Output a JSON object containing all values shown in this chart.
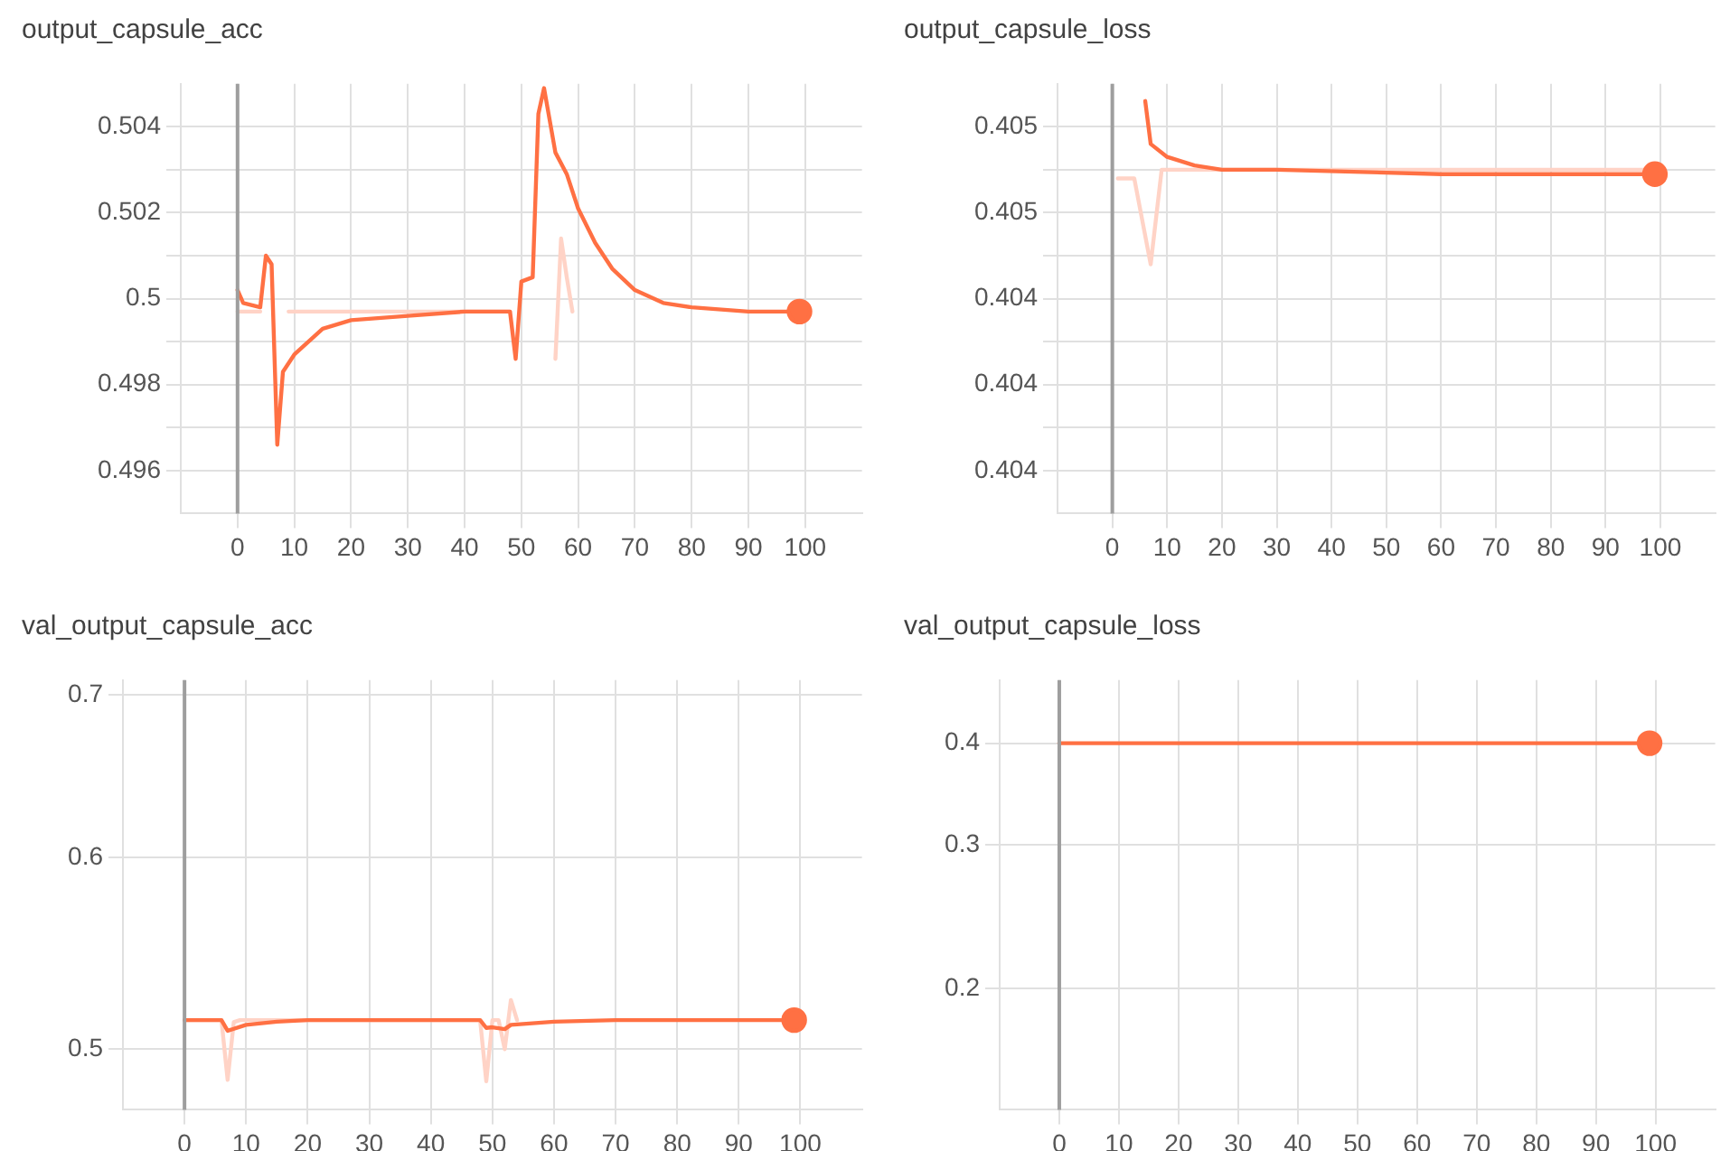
{
  "chart_data": [
    {
      "type": "line",
      "title": "output_capsule_acc",
      "xlim": [
        -10,
        110
      ],
      "xticks": [
        0,
        10,
        20,
        30,
        40,
        50,
        60,
        70,
        80,
        90,
        100
      ],
      "ylim": [
        0.495,
        0.505
      ],
      "yticks": [
        0.496,
        {
          "value": 0.497,
          "label": null
        },
        0.498,
        {
          "value": 0.499,
          "label": null
        },
        0.5,
        {
          "value": 0.501,
          "label": null
        },
        0.502,
        {
          "value": 0.503,
          "label": null
        },
        0.504
      ],
      "grid": true,
      "legend": false,
      "ref_lines": [
        {
          "axis": "x",
          "value": 0,
          "color": "#9e9e9e"
        }
      ],
      "series": [
        {
          "type": "scatter",
          "marker": "circle",
          "color": "#ff7043",
          "x": [
            99
          ],
          "values": [
            0.4997
          ]
        },
        {
          "type": "line",
          "marker": "none",
          "color": "#ff7043",
          "x": [
            0,
            1,
            4,
            5,
            6,
            7,
            8,
            10,
            15,
            20,
            30,
            40,
            48,
            49,
            50,
            52,
            53,
            54,
            56,
            58,
            60,
            63,
            66,
            70,
            75,
            80,
            90,
            99
          ],
          "values": [
            0.5002,
            0.4999,
            0.4998,
            0.501,
            0.5008,
            0.4966,
            0.4983,
            0.4987,
            0.4993,
            0.4995,
            0.4996,
            0.4997,
            0.4997,
            0.4986,
            0.5004,
            0.5005,
            0.5043,
            0.5049,
            0.5034,
            0.5029,
            0.5021,
            0.5013,
            0.5007,
            0.5002,
            0.4999,
            0.4998,
            0.4997,
            0.4997
          ]
        },
        {
          "type": "line",
          "marker": "none",
          "color": "#ffd3c6",
          "x": [
            0,
            4,
            5,
            6,
            7,
            8,
            9,
            48,
            49,
            50,
            51,
            54,
            56,
            57,
            58,
            59
          ],
          "values": [
            0.4997,
            0.4997,
            null,
            null,
            null,
            null,
            0.4997,
            0.4997,
            null,
            null,
            null,
            null,
            0.4986,
            0.5014,
            0.5005,
            0.4997
          ]
        }
      ]
    },
    {
      "type": "line",
      "title": "output_capsule_loss",
      "xlim": [
        -10,
        110
      ],
      "xticks": [
        0,
        10,
        20,
        30,
        40,
        50,
        60,
        70,
        80,
        90,
        100
      ],
      "ylim": [
        0.4039,
        0.4049
      ],
      "yticks": [
        {
          "value": 0.404,
          "label": "0.404"
        },
        {
          "value": 0.4041,
          "label": null
        },
        {
          "value": 0.4042,
          "label": "0.404"
        },
        {
          "value": 0.4043,
          "label": null
        },
        {
          "value": 0.4044,
          "label": "0.404"
        },
        {
          "value": 0.4045,
          "label": null
        },
        {
          "value": 0.4046,
          "label": "0.405"
        },
        {
          "value": 0.4047,
          "label": null
        },
        {
          "value": 0.4048,
          "label": "0.405"
        }
      ],
      "grid": true,
      "legend": false,
      "ref_lines": [
        {
          "axis": "x",
          "value": 0,
          "color": "#9e9e9e"
        }
      ],
      "series": [
        {
          "type": "scatter",
          "marker": "circle",
          "color": "#ff7043",
          "x": [
            99
          ],
          "values": [
            0.40469
          ]
        },
        {
          "type": "line",
          "marker": "none",
          "color": "#ff7043",
          "x": [
            6,
            7,
            10,
            15,
            20,
            30,
            60,
            99
          ],
          "values": [
            0.40486,
            0.40476,
            0.40473,
            0.40471,
            0.4047,
            0.4047,
            0.40469,
            0.40469
          ]
        },
        {
          "type": "line",
          "marker": "none",
          "color": "#ffd3c6",
          "x": [
            1,
            4,
            7,
            9,
            99
          ],
          "values": [
            0.40468,
            0.40468,
            0.40448,
            0.4047,
            0.4047
          ]
        }
      ]
    },
    {
      "type": "line",
      "title": "val_output_capsule_acc",
      "log": "y",
      "xlim": [
        -10,
        110
      ],
      "xticks": [
        0,
        10,
        20,
        30,
        40,
        50,
        60,
        70,
        80,
        90,
        100
      ],
      "ylim": [
        0.472,
        0.71
      ],
      "yticks": [
        0.5,
        0.6,
        0.7
      ],
      "grid": true,
      "legend": false,
      "ref_lines": [
        {
          "axis": "x",
          "value": 0,
          "color": "#9e9e9e"
        }
      ],
      "series": [
        {
          "type": "scatter",
          "marker": "circle",
          "color": "#ff7043",
          "x": [
            99
          ],
          "values": [
            0.514
          ]
        },
        {
          "type": "line",
          "marker": "none",
          "color": "#ff7043",
          "x": [
            0,
            6,
            7,
            10,
            15,
            20,
            48,
            49,
            50,
            52,
            53,
            60,
            70,
            99
          ],
          "values": [
            0.514,
            0.514,
            0.5088,
            0.5117,
            0.5132,
            0.514,
            0.514,
            0.5102,
            0.5105,
            0.5096,
            0.5117,
            0.5132,
            0.514,
            0.514
          ]
        },
        {
          "type": "line",
          "marker": "none",
          "color": "#ffd3c6",
          "x": [
            0,
            6,
            7,
            8,
            9,
            48,
            49,
            50,
            51,
            52,
            53,
            54
          ],
          "values": [
            0.514,
            0.514,
            0.4856,
            0.513,
            0.514,
            0.514,
            0.485,
            0.514,
            0.514,
            0.5,
            0.5239,
            0.514
          ]
        }
      ]
    },
    {
      "type": "line",
      "title": "val_output_capsule_loss",
      "log": "y",
      "xlim": [
        -10,
        110
      ],
      "xticks": [
        0,
        10,
        20,
        30,
        40,
        50,
        60,
        70,
        80,
        90,
        100
      ],
      "ylim": [
        0.142,
        0.478
      ],
      "yticks": [
        0.2,
        0.3,
        0.4
      ],
      "grid": true,
      "legend": false,
      "ref_lines": [
        {
          "axis": "x",
          "value": 0,
          "color": "#9e9e9e"
        }
      ],
      "series": [
        {
          "type": "scatter",
          "marker": "circle",
          "color": "#ff7043",
          "x": [
            99
          ],
          "values": [
            0.4
          ]
        },
        {
          "type": "line",
          "marker": "none",
          "color": "#ff7043",
          "x": [
            0,
            99
          ],
          "values": [
            0.4,
            0.4
          ]
        }
      ]
    }
  ]
}
